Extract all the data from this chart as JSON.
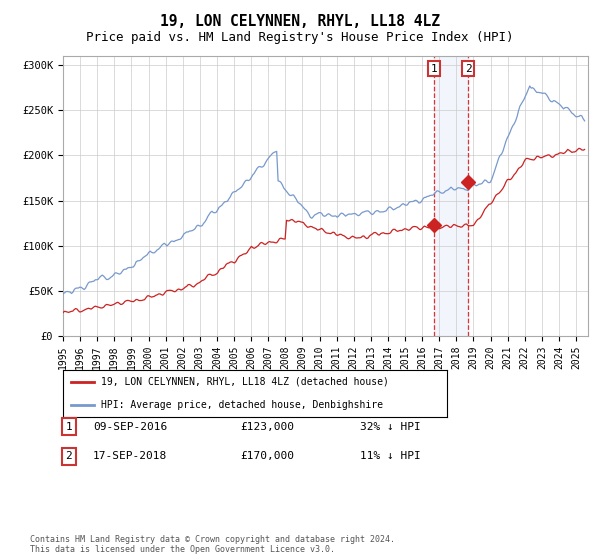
{
  "title": "19, LON CELYNNEN, RHYL, LL18 4LZ",
  "subtitle": "Price paid vs. HM Land Registry's House Price Index (HPI)",
  "ylabel_ticks": [
    "£0",
    "£50K",
    "£100K",
    "£150K",
    "£200K",
    "£250K",
    "£300K"
  ],
  "ytick_values": [
    0,
    50000,
    100000,
    150000,
    200000,
    250000,
    300000
  ],
  "ylim": [
    0,
    310000
  ],
  "xlim_start": 1995.0,
  "xlim_end": 2025.7,
  "legend_line1": "19, LON CELYNNEN, RHYL, LL18 4LZ (detached house)",
  "legend_line2": "HPI: Average price, detached house, Denbighshire",
  "sale1_label": "1",
  "sale1_date": "09-SEP-2016",
  "sale1_price": "£123,000",
  "sale1_hpi": "32% ↓ HPI",
  "sale2_label": "2",
  "sale2_date": "17-SEP-2018",
  "sale2_price": "£170,000",
  "sale2_hpi": "11% ↓ HPI",
  "sale1_year": 2016.7,
  "sale2_year": 2018.7,
  "sale1_price_val": 123000,
  "sale2_price_val": 170000,
  "hpi_color": "#7799cc",
  "price_color": "#cc2222",
  "vline_color": "#dd3333",
  "bg_shade_color": "#ccddf5",
  "footer": "Contains HM Land Registry data © Crown copyright and database right 2024.\nThis data is licensed under the Open Government Licence v3.0.",
  "title_fontsize": 10.5,
  "subtitle_fontsize": 9,
  "axis_fontsize": 7.5
}
